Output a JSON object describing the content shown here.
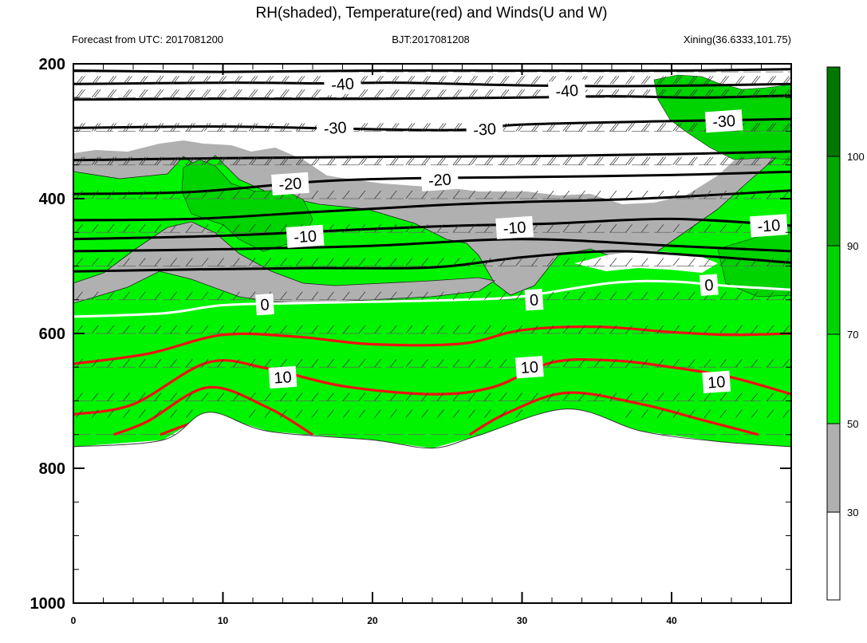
{
  "chart_data": {
    "type": "heatmap",
    "title": "RH(shaded), Temperature(red) and Winds(U and W)",
    "subtitle_left": "Forecast from UTC: 2017081200",
    "subtitle_center": "BJT:2017081208",
    "subtitle_right": "Xining(36.6333,101.75)",
    "xlabel": "",
    "ylabel": "",
    "xlim": [
      0,
      48
    ],
    "ylim": [
      200,
      1000
    ],
    "x_ticks": [
      "0",
      "10",
      "20",
      "30",
      "40"
    ],
    "y_ticks": [
      "200",
      "400",
      "600",
      "800",
      "1000"
    ],
    "colorbar": {
      "levels": [
        "30",
        "50",
        "70",
        "90",
        "100"
      ],
      "colors": [
        "#ffffff",
        "#b0b0b0",
        "#00f400",
        "#00d400",
        "#00a800",
        "#007800"
      ]
    },
    "ground_surface": [
      {
        "x": 0,
        "p": 768
      },
      {
        "x": 6,
        "p": 758
      },
      {
        "x": 9,
        "p": 717
      },
      {
        "x": 13,
        "p": 745
      },
      {
        "x": 20,
        "p": 758
      },
      {
        "x": 24,
        "p": 770
      },
      {
        "x": 27,
        "p": 752
      },
      {
        "x": 33,
        "p": 712
      },
      {
        "x": 38,
        "p": 745
      },
      {
        "x": 43,
        "p": 760
      },
      {
        "x": 48,
        "p": 768
      }
    ],
    "temperature_labels": [
      "-40",
      "-40",
      "-30",
      "-30",
      "-30",
      "-20",
      "-20",
      "-10",
      "-10",
      "-10",
      "0",
      "0",
      "0",
      "10",
      "10",
      "10"
    ],
    "temperature_contours": [
      {
        "level": -40,
        "color": "#000000",
        "points": [
          [
            0,
            210
          ],
          [
            10,
            212
          ],
          [
            20,
            210
          ],
          [
            30,
            210
          ],
          [
            40,
            210
          ],
          [
            48,
            208
          ]
        ]
      },
      {
        "level": -40,
        "color": "#000000",
        "points": [
          [
            0,
            230
          ],
          [
            10,
            228
          ],
          [
            17,
            229
          ],
          [
            22,
            228
          ],
          [
            30,
            232
          ],
          [
            38,
            233
          ],
          [
            48,
            230
          ]
        ]
      },
      {
        "level": -40,
        "color": "#000000",
        "points": [
          [
            0,
            253
          ],
          [
            10,
            252
          ],
          [
            20,
            252
          ],
          [
            30,
            250
          ],
          [
            36,
            248
          ],
          [
            42,
            250
          ],
          [
            48,
            247
          ]
        ]
      },
      {
        "level": -30,
        "color": "#000000",
        "points": [
          [
            0,
            295
          ],
          [
            10,
            293
          ],
          [
            20,
            297
          ],
          [
            26,
            298
          ],
          [
            30,
            290
          ],
          [
            40,
            285
          ],
          [
            48,
            282
          ]
        ]
      },
      {
        "level": -30,
        "color": "#000000",
        "points": [
          [
            0,
            343
          ],
          [
            10,
            340
          ],
          [
            20,
            338
          ],
          [
            30,
            337
          ],
          [
            40,
            334
          ],
          [
            48,
            330
          ]
        ]
      },
      {
        "level": -20,
        "color": "#000000",
        "points": [
          [
            0,
            393
          ],
          [
            8,
            390
          ],
          [
            16,
            375
          ],
          [
            22,
            370
          ],
          [
            30,
            368
          ],
          [
            40,
            365
          ],
          [
            48,
            360
          ]
        ]
      },
      {
        "level": -20,
        "color": "#000000",
        "points": [
          [
            0,
            432
          ],
          [
            8,
            430
          ],
          [
            16,
            420
          ],
          [
            24,
            410
          ],
          [
            30,
            405
          ],
          [
            38,
            400
          ],
          [
            48,
            388
          ]
        ]
      },
      {
        "level": -10,
        "color": "#000000",
        "points": [
          [
            0,
            460
          ],
          [
            10,
            455
          ],
          [
            20,
            445
          ],
          [
            26,
            440
          ],
          [
            32,
            437
          ],
          [
            40,
            430
          ],
          [
            48,
            440
          ]
        ]
      },
      {
        "level": -10,
        "color": "#000000",
        "points": [
          [
            0,
            478
          ],
          [
            10,
            475
          ],
          [
            20,
            470
          ],
          [
            30,
            460
          ],
          [
            40,
            470
          ],
          [
            48,
            478
          ]
        ]
      },
      {
        "level": -10,
        "color": "#000000",
        "points": [
          [
            0,
            508
          ],
          [
            8,
            505
          ],
          [
            16,
            503
          ],
          [
            24,
            502
          ],
          [
            30,
            487
          ],
          [
            36,
            478
          ],
          [
            42,
            485
          ],
          [
            48,
            495
          ]
        ]
      },
      {
        "level": 0,
        "color": "#ffffff",
        "points": [
          [
            0,
            575
          ],
          [
            6,
            570
          ],
          [
            10,
            558
          ],
          [
            15,
            555
          ],
          [
            20,
            553
          ],
          [
            26,
            550
          ],
          [
            30,
            545
          ],
          [
            36,
            525
          ],
          [
            40,
            523
          ],
          [
            44,
            530
          ],
          [
            48,
            535
          ]
        ]
      },
      {
        "level": 10,
        "color": "#ee1111",
        "points": [
          [
            0,
            645
          ],
          [
            5,
            630
          ],
          [
            10,
            602
          ],
          [
            15,
            605
          ],
          [
            20,
            616
          ],
          [
            26,
            615
          ],
          [
            30,
            595
          ],
          [
            35,
            590
          ],
          [
            40,
            598
          ],
          [
            44,
            602
          ],
          [
            48,
            600
          ]
        ]
      },
      {
        "level": 10,
        "color": "#ee1111",
        "points": [
          [
            0,
            720
          ],
          [
            4,
            705
          ],
          [
            9,
            643
          ],
          [
            13,
            652
          ],
          [
            18,
            678
          ],
          [
            24,
            690
          ],
          [
            28,
            680
          ],
          [
            32,
            643
          ],
          [
            36,
            640
          ],
          [
            40,
            650
          ],
          [
            44,
            665
          ],
          [
            48,
            690
          ]
        ]
      },
      {
        "level": 10,
        "color": "#ee1111",
        "points": [
          [
            2.7,
            750
          ],
          [
            5,
            730
          ],
          [
            9,
            680
          ],
          [
            13,
            710
          ],
          [
            16,
            750
          ]
        ]
      },
      {
        "level": 10,
        "color": "#ee1111",
        "points": [
          [
            5.8,
            750
          ],
          [
            9,
            728
          ],
          [
            10.8,
            750
          ]
        ]
      },
      {
        "level": 10,
        "color": "#ee1111",
        "points": [
          [
            26.5,
            750
          ],
          [
            29,
            718
          ],
          [
            33,
            688
          ],
          [
            38,
            705
          ],
          [
            42,
            728
          ],
          [
            45.8,
            750
          ]
        ]
      },
      {
        "level": 10,
        "color": "#ee1111",
        "points": [
          [
            29.3,
            750
          ],
          [
            33,
            728
          ],
          [
            37,
            750
          ]
        ]
      }
    ]
  }
}
